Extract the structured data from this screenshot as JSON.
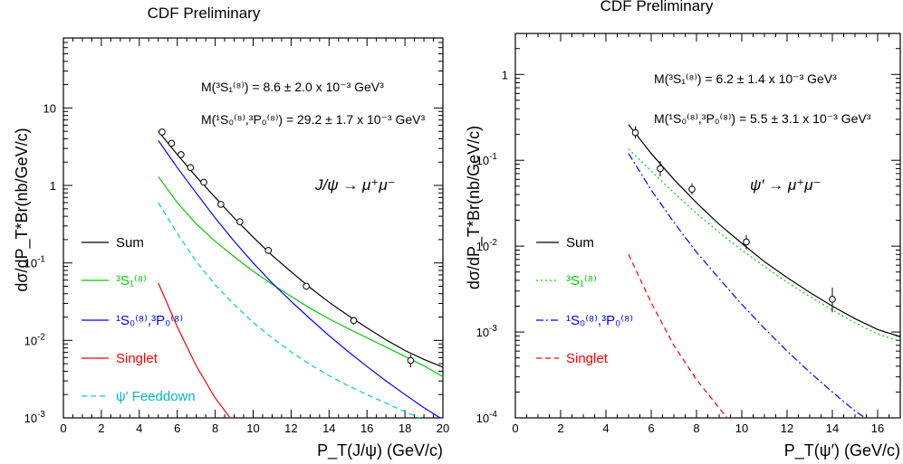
{
  "chart_data": [
    {
      "type": "line",
      "title": "CDF Preliminary",
      "xlabel": "P_T(J/ψ) (GeV/c)",
      "ylabel": "dσ/dP_T*Br(nb/GeV/c)",
      "xlim": [
        0,
        20
      ],
      "ylim": [
        0.001,
        80
      ],
      "y_scale": "log",
      "x_ticks": [
        "0",
        "2",
        "4",
        "6",
        "8",
        "10",
        "12",
        "14",
        "16",
        "18",
        "20"
      ],
      "y_ticks": [
        {
          "v": 0.001,
          "label": "10",
          "exp": "-3"
        },
        {
          "v": 0.01,
          "label": "10",
          "exp": "-2"
        },
        {
          "v": 0.1,
          "label": "10",
          "exp": "-1"
        },
        {
          "v": 1,
          "label": "1",
          "exp": ""
        },
        {
          "v": 10,
          "label": "10",
          "exp": ""
        }
      ],
      "annotations": [
        "M(³S₁⁽⁸⁾) = 8.6 ± 2.0 x 10⁻³ GeV³",
        "M(¹S₀⁽⁸⁾,³P₀⁽⁸⁾) = 29.2 ± 1.7 x 10⁻³ GeV³"
      ],
      "process_label": "J/ψ → μ⁺μ⁻",
      "legend_position": "left",
      "series": [
        {
          "name": "Sum",
          "color": "#000000",
          "style": "solid",
          "x": [
            5,
            6,
            7,
            8,
            9,
            10,
            11,
            12,
            13,
            14,
            15,
            16,
            17,
            18,
            19,
            20
          ],
          "y": [
            5.0,
            2.5,
            1.3,
            0.7,
            0.38,
            0.215,
            0.125,
            0.077,
            0.048,
            0.031,
            0.021,
            0.0145,
            0.0102,
            0.0074,
            0.0057,
            0.0045
          ]
        },
        {
          "name": "³S₁⁽⁸⁾",
          "color": "#00cc00",
          "style": "solid",
          "x": [
            5,
            6,
            7,
            8,
            9,
            10,
            11,
            12,
            13,
            14,
            15,
            16,
            17,
            18,
            19,
            20
          ],
          "y": [
            1.3,
            0.6,
            0.32,
            0.19,
            0.12,
            0.078,
            0.053,
            0.037,
            0.026,
            0.019,
            0.0142,
            0.0108,
            0.0082,
            0.0062,
            0.0047,
            0.0034
          ]
        },
        {
          "name": "¹S₀⁽⁸⁾,³P₀⁽⁸⁾",
          "color": "#0000ff",
          "style": "solid",
          "x": [
            5,
            6,
            7,
            8,
            9,
            10,
            11,
            12,
            13,
            14,
            15,
            16,
            17,
            18,
            19,
            20
          ],
          "y": [
            3.8,
            1.7,
            0.8,
            0.38,
            0.19,
            0.1,
            0.055,
            0.032,
            0.019,
            0.0115,
            0.0072,
            0.0046,
            0.003,
            0.002,
            0.00135,
            0.00095
          ]
        },
        {
          "name": "Singlet",
          "color": "#ff0000",
          "style": "solid",
          "x": [
            5,
            6,
            7,
            8,
            9
          ],
          "y": [
            0.055,
            0.015,
            0.0047,
            0.0018,
            0.00085
          ]
        },
        {
          "name": "ψ′ Feeddown",
          "color": "#00cccc",
          "style": "dashed",
          "x": [
            5,
            6,
            7,
            8,
            9,
            10,
            11,
            12,
            13,
            14,
            15,
            16,
            17,
            18,
            19,
            20
          ],
          "y": [
            0.6,
            0.24,
            0.105,
            0.052,
            0.029,
            0.017,
            0.0108,
            0.0071,
            0.0049,
            0.0035,
            0.0026,
            0.002,
            0.00155,
            0.0012,
            0.00095,
            0.00075
          ]
        }
      ],
      "data_points": {
        "x": [
          5.2,
          5.7,
          6.2,
          6.7,
          7.4,
          8.3,
          9.3,
          10.8,
          12.8,
          15.3,
          18.3
        ],
        "y": [
          4.9,
          3.5,
          2.5,
          1.7,
          1.1,
          0.57,
          0.34,
          0.145,
          0.05,
          0.018,
          0.0055
        ],
        "y_lo": [
          4.5,
          3.2,
          2.3,
          1.55,
          1.0,
          0.52,
          0.31,
          0.13,
          0.045,
          0.016,
          0.0045
        ],
        "y_hi": [
          5.3,
          3.8,
          2.7,
          1.85,
          1.2,
          0.62,
          0.37,
          0.16,
          0.055,
          0.02,
          0.0066
        ]
      }
    },
    {
      "type": "line",
      "title": "CDF Preliminary",
      "xlabel": "P_T(ψ′) (GeV/c)",
      "ylabel": "dσ/dP_T*Br(nb/GeV/c)",
      "xlim": [
        0,
        17
      ],
      "ylim": [
        0.0001,
        3
      ],
      "y_scale": "log",
      "x_ticks": [
        "0",
        "2",
        "4",
        "6",
        "8",
        "10",
        "12",
        "14",
        "16"
      ],
      "y_ticks": [
        {
          "v": 0.0001,
          "label": "10",
          "exp": "-4"
        },
        {
          "v": 0.001,
          "label": "10",
          "exp": "-3"
        },
        {
          "v": 0.01,
          "label": "10",
          "exp": "-2"
        },
        {
          "v": 0.1,
          "label": "10",
          "exp": "-1"
        },
        {
          "v": 1,
          "label": "1",
          "exp": ""
        }
      ],
      "annotations": [
        "M(³S₁⁽⁸⁾) = 6.2 ± 1.4 x 10⁻³ GeV³",
        "M(¹S₀⁽⁸⁾,³P₀⁽⁸⁾) = 5.5 ± 3.1 x 10⁻³ GeV³"
      ],
      "process_label": "ψ′ → μ⁺μ⁻",
      "legend_position": "left",
      "series": [
        {
          "name": "Sum",
          "color": "#000000",
          "style": "solid",
          "x": [
            5,
            6,
            7,
            8,
            9,
            10,
            11,
            12,
            13,
            14,
            15,
            16,
            17
          ],
          "y": [
            0.26,
            0.12,
            0.06,
            0.032,
            0.018,
            0.0108,
            0.0066,
            0.0043,
            0.0029,
            0.002,
            0.00143,
            0.00107,
            0.00088
          ]
        },
        {
          "name": "³S₁⁽⁸⁾",
          "color": "#00cc00",
          "style": "dotted",
          "x": [
            5,
            6,
            7,
            8,
            9,
            10,
            11,
            12,
            13,
            14,
            15,
            16,
            17
          ],
          "y": [
            0.135,
            0.075,
            0.042,
            0.024,
            0.0145,
            0.009,
            0.0058,
            0.0038,
            0.0026,
            0.0018,
            0.00128,
            0.00095,
            0.00078
          ]
        },
        {
          "name": "¹S₀⁽⁸⁾,³P₀⁽⁸⁾",
          "color": "#0000ff",
          "style": "dashdot",
          "x": [
            5,
            6,
            7,
            8,
            9,
            10,
            11,
            12,
            13,
            14,
            15,
            16,
            17
          ],
          "y": [
            0.12,
            0.045,
            0.019,
            0.0085,
            0.0042,
            0.0021,
            0.0011,
            0.0006,
            0.00034,
            0.0002,
            0.00012,
            8e-05,
            7e-05
          ]
        },
        {
          "name": "Singlet",
          "color": "#ff0000",
          "style": "dashed",
          "x": [
            5,
            6,
            7,
            8,
            9,
            9.5
          ],
          "y": [
            0.008,
            0.0022,
            0.0007,
            0.00028,
            0.00013,
            9e-05
          ]
        }
      ],
      "data_points": {
        "x": [
          5.3,
          6.4,
          7.8,
          10.2,
          14.0
        ],
        "y": [
          0.21,
          0.08,
          0.046,
          0.0112,
          0.0024
        ],
        "y_lo": [
          0.18,
          0.065,
          0.04,
          0.0092,
          0.0017
        ],
        "y_hi": [
          0.25,
          0.098,
          0.054,
          0.0135,
          0.0033
        ]
      }
    }
  ]
}
